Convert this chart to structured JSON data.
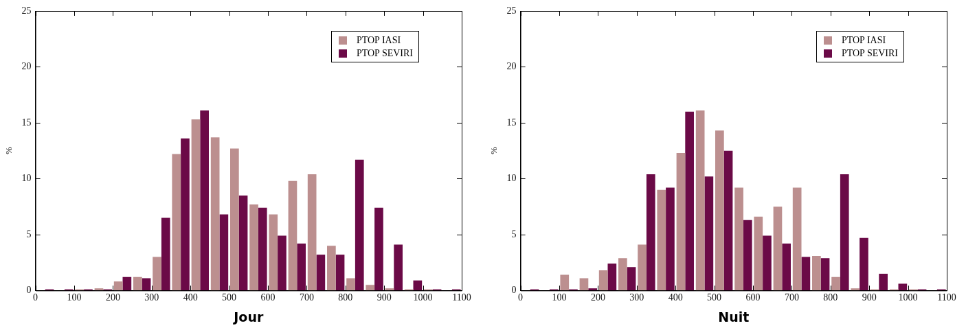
{
  "chart_data": [
    {
      "type": "histogram",
      "xlabel": "Jour",
      "ylabel": "%",
      "bins": [
        0,
        50,
        100,
        150,
        200,
        250,
        300,
        350,
        400,
        450,
        500,
        550,
        600,
        650,
        700,
        750,
        800,
        850,
        900,
        950,
        1000,
        1050,
        1100
      ],
      "series": [
        {
          "name": "PTOP IASI",
          "color": "#bc8f8f",
          "values": [
            0,
            0,
            0.1,
            0.2,
            0.8,
            1.2,
            3.0,
            12.2,
            15.3,
            13.7,
            12.7,
            7.7,
            6.8,
            9.8,
            10.4,
            4.0,
            1.1,
            0.5,
            0.2,
            0.1,
            0.1,
            0
          ]
        },
        {
          "name": "PTOP SEVIRI",
          "color": "#6b0a47",
          "values": [
            0.1,
            0.1,
            0.1,
            0.1,
            1.2,
            1.1,
            6.5,
            13.6,
            16.1,
            6.8,
            8.5,
            7.4,
            4.9,
            4.2,
            3.2,
            3.2,
            11.7,
            7.4,
            4.1,
            0.9,
            0.1,
            0.1
          ]
        }
      ],
      "xlim": [
        0,
        1100
      ],
      "xticks": [
        0,
        100,
        200,
        300,
        400,
        500,
        600,
        700,
        800,
        900,
        1000,
        1100
      ],
      "ylim": [
        0,
        25
      ],
      "yticks": [
        0,
        5,
        10,
        15,
        20,
        25
      ],
      "grid": false,
      "legend": "top right"
    },
    {
      "type": "histogram",
      "xlabel": "Nuit",
      "ylabel": "%",
      "bins": [
        0,
        50,
        100,
        150,
        200,
        250,
        300,
        350,
        400,
        450,
        500,
        550,
        600,
        650,
        700,
        750,
        800,
        850,
        900,
        950,
        1000,
        1050,
        1100
      ],
      "series": [
        {
          "name": "PTOP IASI",
          "color": "#bc8f8f",
          "values": [
            0,
            0,
            1.4,
            1.1,
            1.8,
            2.9,
            4.1,
            9.0,
            12.3,
            16.1,
            14.3,
            9.2,
            6.6,
            7.5,
            9.2,
            3.1,
            1.2,
            0.2,
            0.1,
            0.1,
            0.1,
            0
          ]
        },
        {
          "name": "PTOP SEVIRI",
          "color": "#6b0a47",
          "values": [
            0.1,
            0.1,
            0.1,
            0.2,
            2.4,
            2.1,
            10.4,
            9.2,
            16.0,
            10.2,
            12.5,
            6.3,
            4.9,
            4.2,
            3.0,
            2.9,
            10.4,
            4.7,
            1.5,
            0.6,
            0.1,
            0.1
          ]
        }
      ],
      "xlim": [
        0,
        1100
      ],
      "xticks": [
        0,
        100,
        200,
        300,
        400,
        500,
        600,
        700,
        800,
        900,
        1000,
        1100
      ],
      "ylim": [
        0,
        25
      ],
      "yticks": [
        0,
        5,
        10,
        15,
        20,
        25
      ],
      "grid": false,
      "legend": "top right"
    }
  ]
}
